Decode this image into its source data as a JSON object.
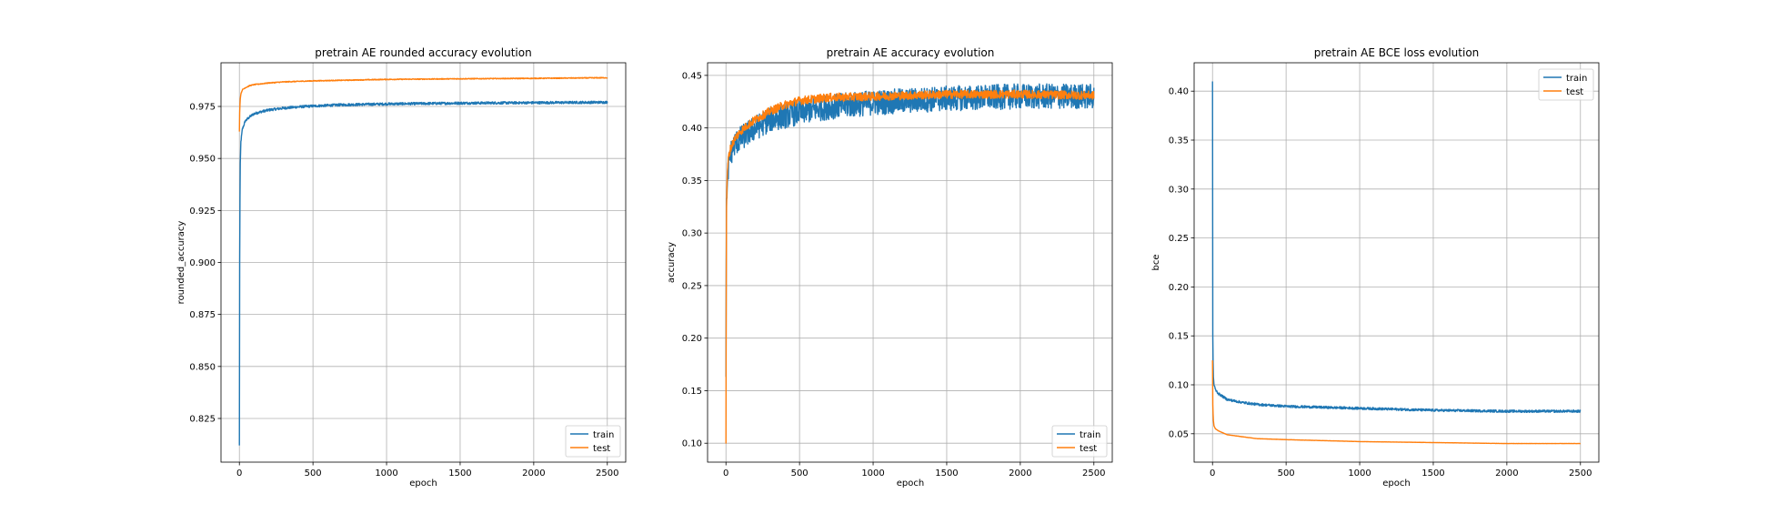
{
  "colors": {
    "train": "#1f77b4",
    "test": "#ff7f0e",
    "grid": "#b0b0b0",
    "axes": "#000000"
  },
  "chart_data": [
    {
      "type": "line",
      "title": "pretrain AE rounded accuracy evolution",
      "xlabel": "epoch",
      "ylabel": "rounded_accuracy",
      "xlim": [
        -125,
        2625
      ],
      "ylim": [
        0.804,
        0.996
      ],
      "xticks": [
        0,
        500,
        1000,
        1500,
        2000,
        2500
      ],
      "yticks": [
        0.825,
        0.85,
        0.875,
        0.9,
        0.925,
        0.95,
        0.975
      ],
      "ytick_labels": [
        "0.825",
        "0.850",
        "0.875",
        "0.900",
        "0.925",
        "0.950",
        "0.975"
      ],
      "grid": true,
      "legend": "lower-right",
      "series": [
        {
          "name": "train",
          "color": "#1f77b4",
          "noise": 0.0006,
          "x": [
            0,
            2,
            5,
            10,
            20,
            40,
            70,
            100,
            150,
            200,
            300,
            400,
            500,
            700,
            1000,
            1500,
            2000,
            2500
          ],
          "y": [
            0.812,
            0.9,
            0.945,
            0.958,
            0.964,
            0.968,
            0.97,
            0.9715,
            0.9725,
            0.9733,
            0.9742,
            0.9748,
            0.9752,
            0.9758,
            0.9762,
            0.9766,
            0.9768,
            0.977
          ]
        },
        {
          "name": "test",
          "color": "#ff7f0e",
          "noise": 0.0002,
          "x": [
            0,
            2,
            5,
            10,
            20,
            40,
            70,
            100,
            200,
            300,
            500,
            1000,
            1500,
            2000,
            2500
          ],
          "y": [
            0.963,
            0.972,
            0.978,
            0.981,
            0.983,
            0.984,
            0.985,
            0.9855,
            0.9863,
            0.9868,
            0.9873,
            0.988,
            0.9883,
            0.9885,
            0.9888
          ]
        }
      ]
    },
    {
      "type": "line",
      "title": "pretrain AE accuracy evolution",
      "xlabel": "epoch",
      "ylabel": "accuracy",
      "xlim": [
        -125,
        2625
      ],
      "ylim": [
        0.082,
        0.462
      ],
      "xticks": [
        0,
        500,
        1000,
        1500,
        2000,
        2500
      ],
      "yticks": [
        0.1,
        0.15,
        0.2,
        0.25,
        0.3,
        0.35,
        0.4,
        0.45
      ],
      "ytick_labels": [
        "0.10",
        "0.15",
        "0.20",
        "0.25",
        "0.30",
        "0.35",
        "0.40",
        "0.45"
      ],
      "grid": true,
      "legend": "lower-right",
      "series": [
        {
          "name": "train",
          "color": "#1f77b4",
          "noise": 0.012,
          "x": [
            0,
            3,
            8,
            15,
            30,
            60,
            100,
            200,
            300,
            500,
            700,
            1000,
            1500,
            2000,
            2500
          ],
          "y": [
            0.16,
            0.33,
            0.34,
            0.36,
            0.375,
            0.385,
            0.39,
            0.4,
            0.408,
            0.415,
            0.42,
            0.424,
            0.428,
            0.43,
            0.43
          ]
        },
        {
          "name": "test",
          "color": "#ff7f0e",
          "noise": 0.004,
          "x": [
            0,
            3,
            8,
            15,
            30,
            60,
            100,
            150,
            200,
            300,
            400,
            500,
            700,
            1000,
            1500,
            2000,
            2500
          ],
          "y": [
            0.1,
            0.32,
            0.35,
            0.37,
            0.38,
            0.39,
            0.397,
            0.403,
            0.408,
            0.416,
            0.422,
            0.426,
            0.429,
            0.43,
            0.432,
            0.432,
            0.431
          ]
        }
      ]
    },
    {
      "type": "line",
      "title": "pretrain AE BCE loss evolution",
      "xlabel": "epoch",
      "ylabel": "bce",
      "xlim": [
        -125,
        2625
      ],
      "ylim": [
        0.021,
        0.429
      ],
      "xticks": [
        0,
        500,
        1000,
        1500,
        2000,
        2500
      ],
      "yticks": [
        0.05,
        0.1,
        0.15,
        0.2,
        0.25,
        0.3,
        0.35,
        0.4
      ],
      "ytick_labels": [
        "0.05",
        "0.10",
        "0.15",
        "0.20",
        "0.25",
        "0.30",
        "0.35",
        "0.40"
      ],
      "grid": true,
      "legend": "upper-right",
      "series": [
        {
          "name": "train",
          "color": "#1f77b4",
          "noise": 0.0012,
          "x": [
            0,
            2,
            5,
            10,
            20,
            40,
            70,
            100,
            200,
            300,
            500,
            1000,
            1500,
            2000,
            2500
          ],
          "y": [
            0.41,
            0.15,
            0.11,
            0.1,
            0.095,
            0.091,
            0.088,
            0.085,
            0.082,
            0.08,
            0.078,
            0.076,
            0.074,
            0.073,
            0.073
          ]
        },
        {
          "name": "test",
          "color": "#ff7f0e",
          "noise": 0.0001,
          "x": [
            0,
            2,
            5,
            10,
            20,
            40,
            70,
            100,
            200,
            300,
            500,
            1000,
            1500,
            2000,
            2500
          ],
          "y": [
            0.125,
            0.08,
            0.065,
            0.058,
            0.055,
            0.053,
            0.051,
            0.049,
            0.047,
            0.045,
            0.044,
            0.042,
            0.041,
            0.04,
            0.04
          ]
        }
      ]
    }
  ]
}
